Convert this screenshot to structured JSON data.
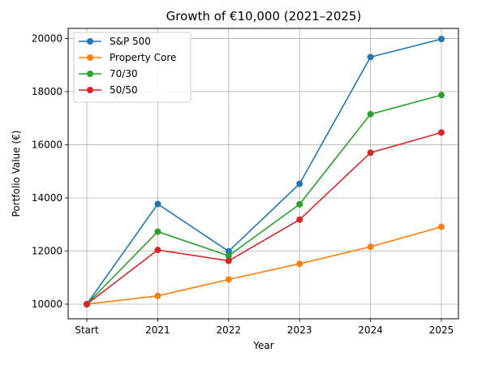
{
  "chart_data": {
    "type": "line",
    "title": "Growth of €10,000 (2021–2025)",
    "xlabel": "Year",
    "ylabel": "Portfolio Value (€)",
    "categories": [
      "Start",
      "2021",
      "2022",
      "2023",
      "2024",
      "2025"
    ],
    "ylim": [
      9450,
      20380
    ],
    "yticks": [
      10000,
      12000,
      14000,
      16000,
      18000,
      20000
    ],
    "grid": true,
    "legend_position": "top-left",
    "series": [
      {
        "name": "S&P 500",
        "color": "#1f77b4",
        "values": [
          10000,
          13770,
          11990,
          14530,
          19300,
          19980
        ]
      },
      {
        "name": "Property Core",
        "color": "#ff7f0e",
        "values": [
          10000,
          10310,
          10930,
          11520,
          12160,
          12910
        ]
      },
      {
        "name": "70/30",
        "color": "#2ca02c",
        "values": [
          10000,
          12730,
          11820,
          13760,
          17150,
          17870
        ]
      },
      {
        "name": "50/50",
        "color": "#d62728",
        "values": [
          10000,
          12040,
          11630,
          13180,
          15700,
          16460
        ]
      }
    ]
  }
}
